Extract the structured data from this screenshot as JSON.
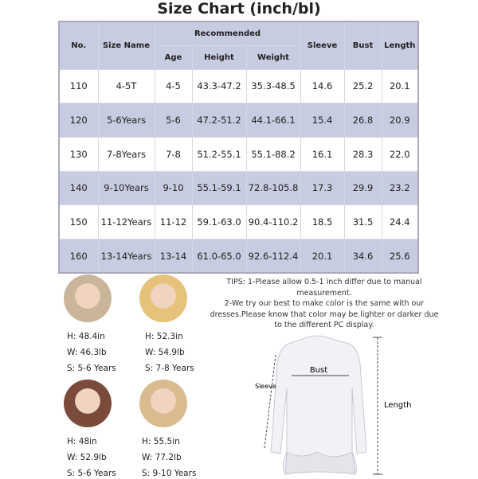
{
  "title": "Size Chart (inch/bl)",
  "table": {
    "headers": {
      "no": "No.",
      "size_name": "Size Name",
      "recommended": "Recommended",
      "age": "Age",
      "height": "Height",
      "weight": "Weight",
      "sleeve": "Sleeve",
      "bust": "Bust",
      "length": "Length"
    },
    "rows": [
      [
        "110",
        "4-5T",
        "4-5",
        "43.3-47.2",
        "35.3-48.5",
        "14.6",
        "25.2",
        "20.1"
      ],
      [
        "120",
        "5-6Years",
        "5-6",
        "47.2-51.2",
        "44.1-66.1",
        "15.4",
        "26.8",
        "20.9"
      ],
      [
        "130",
        "7-8Years",
        "7-8",
        "51.2-55.1",
        "55.1-88.2",
        "16.1",
        "28.3",
        "22.0"
      ],
      [
        "140",
        "9-10Years",
        "9-10",
        "55.1-59.1",
        "72.8-105.8",
        "17.3",
        "29.9",
        "23.2"
      ],
      [
        "150",
        "11-12Years",
        "11-12",
        "59.1-63.0",
        "90.4-110.2",
        "18.5",
        "31.5",
        "24.4"
      ],
      [
        "160",
        "13-14Years",
        "13-14",
        "61.0-65.0",
        "92.6-112.4",
        "20.1",
        "34.6",
        "25.6"
      ]
    ]
  },
  "models": [
    {
      "h": "H: 48.4in",
      "w": "W: 46.3lb",
      "s": "S: 5-6 Years",
      "color": "#c9b59a"
    },
    {
      "h": "H: 52.3in",
      "w": "W: 54.9lb",
      "s": "S: 7-8 Years",
      "color": "#e6c27a"
    },
    {
      "h": "H: 48in",
      "w": "W: 52.9lb",
      "s": "S: 5-6 Years",
      "color": "#7a4a3a"
    },
    {
      "h": "H: 55.5in",
      "w": "W: 77.2lb",
      "s": "S: 9-10 Years",
      "color": "#d9bb8f"
    }
  ],
  "tips": {
    "line1": "TIPS:  1-Please allow 0.5-1 inch differ due to manual measurement.",
    "line2": "2-We try our best to make color is the same with our dresses.Please know that color may be lighter or darker due to the different PC display."
  },
  "diagram": {
    "bust": "Bust",
    "sleeve": "Sleeve",
    "length": "Length"
  }
}
